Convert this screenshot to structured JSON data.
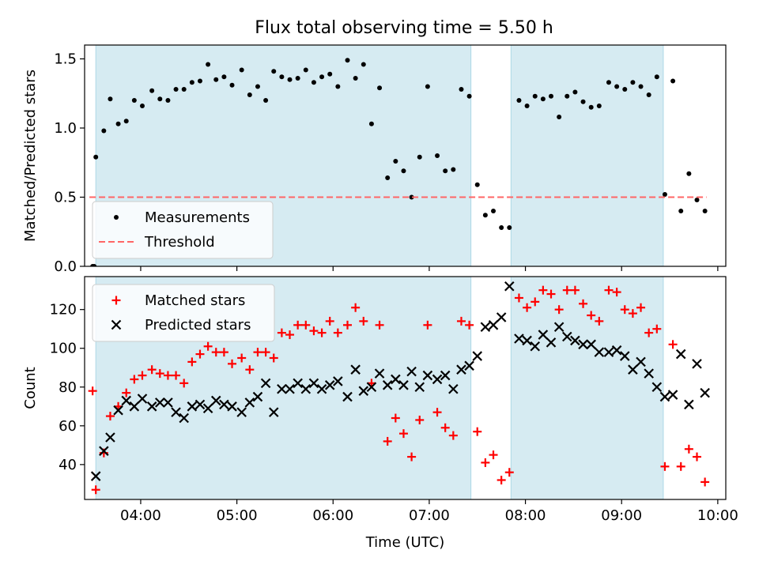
{
  "figure": {
    "title": "Flux total observing time = 5.50 h",
    "shaded_color": "#add8e6",
    "tick_font_px": 18
  },
  "chart_data": [
    {
      "type": "scatter",
      "name": "flux-ratio",
      "title": "Flux total observing time = 5.50 h",
      "xlabel": "",
      "ylabel": "Matched/Predicted stars",
      "xlim": [
        "03:25",
        "10:05"
      ],
      "ylim": [
        0,
        1.6
      ],
      "xticks": [
        "04:00",
        "05:00",
        "06:00",
        "07:00",
        "08:00",
        "09:00",
        "10:00"
      ],
      "yticks": [
        0.0,
        0.5,
        1.0,
        1.5
      ],
      "ytick_labels": [
        "0.0",
        "0.5",
        "1.0",
        "1.5"
      ],
      "grid": false,
      "legend_position": "lower-left",
      "shaded_intervals": [
        [
          "03:32",
          "07:26"
        ],
        [
          "07:51",
          "09:26"
        ]
      ],
      "series": [
        {
          "name": "Measurements",
          "marker": "dot",
          "color": "#000000",
          "points": [
            [
              "03:30",
              0.0
            ],
            [
              "03:31",
              0.0
            ],
            [
              "03:32",
              0.79
            ],
            [
              "03:37",
              0.98
            ],
            [
              "03:41",
              1.21
            ],
            [
              "03:46",
              1.03
            ],
            [
              "03:51",
              1.05
            ],
            [
              "03:56",
              1.2
            ],
            [
              "04:01",
              1.16
            ],
            [
              "04:07",
              1.27
            ],
            [
              "04:12",
              1.21
            ],
            [
              "04:17",
              1.2
            ],
            [
              "04:22",
              1.28
            ],
            [
              "04:27",
              1.28
            ],
            [
              "04:32",
              1.33
            ],
            [
              "04:37",
              1.34
            ],
            [
              "04:42",
              1.46
            ],
            [
              "04:47",
              1.35
            ],
            [
              "04:52",
              1.37
            ],
            [
              "04:57",
              1.31
            ],
            [
              "05:03",
              1.42
            ],
            [
              "05:08",
              1.24
            ],
            [
              "05:13",
              1.3
            ],
            [
              "05:18",
              1.2
            ],
            [
              "05:23",
              1.41
            ],
            [
              "05:28",
              1.37
            ],
            [
              "05:33",
              1.35
            ],
            [
              "05:38",
              1.36
            ],
            [
              "05:43",
              1.42
            ],
            [
              "05:48",
              1.33
            ],
            [
              "05:53",
              1.37
            ],
            [
              "05:58",
              1.39
            ],
            [
              "06:03",
              1.3
            ],
            [
              "06:09",
              1.49
            ],
            [
              "06:14",
              1.36
            ],
            [
              "06:19",
              1.46
            ],
            [
              "06:24",
              1.03
            ],
            [
              "06:29",
              1.29
            ],
            [
              "06:34",
              0.64
            ],
            [
              "06:39",
              0.76
            ],
            [
              "06:44",
              0.69
            ],
            [
              "06:49",
              0.5
            ],
            [
              "06:54",
              0.79
            ],
            [
              "06:59",
              1.3
            ],
            [
              "07:05",
              0.8
            ],
            [
              "07:10",
              0.69
            ],
            [
              "07:15",
              0.7
            ],
            [
              "07:20",
              1.28
            ],
            [
              "07:25",
              1.23
            ],
            [
              "07:30",
              0.59
            ],
            [
              "07:35",
              0.37
            ],
            [
              "07:40",
              0.4
            ],
            [
              "07:45",
              0.28
            ],
            [
              "07:50",
              0.28
            ],
            [
              "07:56",
              1.2
            ],
            [
              "08:01",
              1.16
            ],
            [
              "08:06",
              1.23
            ],
            [
              "08:11",
              1.21
            ],
            [
              "08:16",
              1.23
            ],
            [
              "08:21",
              1.08
            ],
            [
              "08:26",
              1.23
            ],
            [
              "08:31",
              1.26
            ],
            [
              "08:36",
              1.19
            ],
            [
              "08:41",
              1.15
            ],
            [
              "08:46",
              1.16
            ],
            [
              "08:52",
              1.33
            ],
            [
              "08:57",
              1.3
            ],
            [
              "09:02",
              1.28
            ],
            [
              "09:07",
              1.33
            ],
            [
              "09:12",
              1.3
            ],
            [
              "09:17",
              1.24
            ],
            [
              "09:22",
              1.37
            ],
            [
              "09:27",
              0.52
            ],
            [
              "09:32",
              1.34
            ],
            [
              "09:37",
              0.4
            ],
            [
              "09:42",
              0.67
            ],
            [
              "09:47",
              0.48
            ],
            [
              "09:52",
              0.4
            ]
          ]
        },
        {
          "name": "Threshold",
          "marker": "dashed-line",
          "color": "#ff6666",
          "points": [
            [
              "03:28",
              0.5
            ],
            [
              "09:53",
              0.5
            ]
          ]
        }
      ]
    },
    {
      "type": "scatter",
      "name": "counts",
      "title": "",
      "xlabel": "Time (UTC)",
      "ylabel": "Count",
      "xlim": [
        "03:25",
        "10:05"
      ],
      "ylim": [
        22,
        137
      ],
      "xticks": [
        "04:00",
        "05:00",
        "06:00",
        "07:00",
        "08:00",
        "09:00",
        "10:00"
      ],
      "yticks": [
        40,
        60,
        80,
        100,
        120
      ],
      "ytick_labels": [
        "40",
        "60",
        "80",
        "100",
        "120"
      ],
      "grid": false,
      "legend_position": "upper-left",
      "shaded_intervals": [
        [
          "03:32",
          "07:26"
        ],
        [
          "07:51",
          "09:26"
        ]
      ],
      "series": [
        {
          "name": "Matched stars",
          "marker": "plus",
          "color": "#ff0000",
          "points": [
            [
              "03:30",
              78
            ],
            [
              "03:32",
              27
            ],
            [
              "03:37",
              46
            ],
            [
              "03:41",
              65
            ],
            [
              "03:46",
              70
            ],
            [
              "03:51",
              77
            ],
            [
              "03:56",
              84
            ],
            [
              "04:01",
              86
            ],
            [
              "04:07",
              89
            ],
            [
              "04:12",
              87
            ],
            [
              "04:17",
              86
            ],
            [
              "04:22",
              86
            ],
            [
              "04:27",
              82
            ],
            [
              "04:32",
              93
            ],
            [
              "04:37",
              97
            ],
            [
              "04:42",
              101
            ],
            [
              "04:47",
              98
            ],
            [
              "04:52",
              98
            ],
            [
              "04:57",
              92
            ],
            [
              "05:03",
              95
            ],
            [
              "05:08",
              89
            ],
            [
              "05:13",
              98
            ],
            [
              "05:18",
              98
            ],
            [
              "05:23",
              95
            ],
            [
              "05:28",
              108
            ],
            [
              "05:33",
              107
            ],
            [
              "05:38",
              112
            ],
            [
              "05:43",
              112
            ],
            [
              "05:48",
              109
            ],
            [
              "05:53",
              108
            ],
            [
              "05:58",
              114
            ],
            [
              "06:03",
              108
            ],
            [
              "06:09",
              112
            ],
            [
              "06:14",
              121
            ],
            [
              "06:19",
              114
            ],
            [
              "06:24",
              82
            ],
            [
              "06:29",
              112
            ],
            [
              "06:34",
              52
            ],
            [
              "06:39",
              64
            ],
            [
              "06:44",
              56
            ],
            [
              "06:49",
              44
            ],
            [
              "06:54",
              63
            ],
            [
              "06:59",
              112
            ],
            [
              "07:05",
              67
            ],
            [
              "07:10",
              59
            ],
            [
              "07:15",
              55
            ],
            [
              "07:20",
              114
            ],
            [
              "07:25",
              112
            ],
            [
              "07:30",
              57
            ],
            [
              "07:35",
              41
            ],
            [
              "07:40",
              45
            ],
            [
              "07:45",
              32
            ],
            [
              "07:50",
              36
            ],
            [
              "07:56",
              126
            ],
            [
              "08:01",
              121
            ],
            [
              "08:06",
              124
            ],
            [
              "08:11",
              130
            ],
            [
              "08:16",
              128
            ],
            [
              "08:21",
              120
            ],
            [
              "08:26",
              130
            ],
            [
              "08:31",
              130
            ],
            [
              "08:36",
              123
            ],
            [
              "08:41",
              117
            ],
            [
              "08:46",
              114
            ],
            [
              "08:52",
              130
            ],
            [
              "08:57",
              129
            ],
            [
              "09:02",
              120
            ],
            [
              "09:07",
              118
            ],
            [
              "09:12",
              121
            ],
            [
              "09:17",
              108
            ],
            [
              "09:22",
              110
            ],
            [
              "09:27",
              39
            ],
            [
              "09:32",
              102
            ],
            [
              "09:37",
              39
            ],
            [
              "09:42",
              48
            ],
            [
              "09:47",
              44
            ],
            [
              "09:52",
              31
            ]
          ]
        },
        {
          "name": "Predicted stars",
          "marker": "x",
          "color": "#000000",
          "points": [
            [
              "03:32",
              34
            ],
            [
              "03:37",
              47
            ],
            [
              "03:41",
              54
            ],
            [
              "03:46",
              68
            ],
            [
              "03:51",
              73
            ],
            [
              "03:56",
              70
            ],
            [
              "04:01",
              74
            ],
            [
              "04:07",
              70
            ],
            [
              "04:12",
              72
            ],
            [
              "04:17",
              72
            ],
            [
              "04:22",
              67
            ],
            [
              "04:27",
              64
            ],
            [
              "04:32",
              70
            ],
            [
              "04:37",
              71
            ],
            [
              "04:42",
              69
            ],
            [
              "04:47",
              73
            ],
            [
              "04:52",
              71
            ],
            [
              "04:57",
              70
            ],
            [
              "05:03",
              67
            ],
            [
              "05:08",
              72
            ],
            [
              "05:13",
              75
            ],
            [
              "05:18",
              82
            ],
            [
              "05:23",
              67
            ],
            [
              "05:28",
              79
            ],
            [
              "05:33",
              79
            ],
            [
              "05:38",
              82
            ],
            [
              "05:43",
              79
            ],
            [
              "05:48",
              82
            ],
            [
              "05:53",
              79
            ],
            [
              "05:58",
              81
            ],
            [
              "06:03",
              83
            ],
            [
              "06:09",
              75
            ],
            [
              "06:14",
              89
            ],
            [
              "06:19",
              78
            ],
            [
              "06:24",
              80
            ],
            [
              "06:29",
              87
            ],
            [
              "06:34",
              81
            ],
            [
              "06:39",
              84
            ],
            [
              "06:44",
              81
            ],
            [
              "06:49",
              88
            ],
            [
              "06:54",
              80
            ],
            [
              "06:59",
              86
            ],
            [
              "07:05",
              84
            ],
            [
              "07:10",
              86
            ],
            [
              "07:15",
              79
            ],
            [
              "07:20",
              89
            ],
            [
              "07:25",
              91
            ],
            [
              "07:30",
              96
            ],
            [
              "07:35",
              111
            ],
            [
              "07:40",
              112
            ],
            [
              "07:45",
              116
            ],
            [
              "07:50",
              132
            ],
            [
              "07:56",
              105
            ],
            [
              "08:01",
              104
            ],
            [
              "08:06",
              101
            ],
            [
              "08:11",
              107
            ],
            [
              "08:16",
              103
            ],
            [
              "08:21",
              111
            ],
            [
              "08:26",
              106
            ],
            [
              "08:31",
              104
            ],
            [
              "08:36",
              102
            ],
            [
              "08:41",
              102
            ],
            [
              "08:46",
              98
            ],
            [
              "08:52",
              98
            ],
            [
              "08:57",
              99
            ],
            [
              "09:02",
              96
            ],
            [
              "09:07",
              89
            ],
            [
              "09:12",
              93
            ],
            [
              "09:17",
              87
            ],
            [
              "09:22",
              80
            ],
            [
              "09:27",
              75
            ],
            [
              "09:32",
              76
            ],
            [
              "09:37",
              97
            ],
            [
              "09:42",
              71
            ],
            [
              "09:47",
              92
            ],
            [
              "09:52",
              77
            ]
          ]
        }
      ]
    }
  ]
}
